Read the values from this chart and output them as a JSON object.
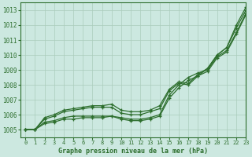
{
  "title": "Graphe pression niveau de la mer (hPa)",
  "background_color": "#cce8e0",
  "grid_color": "#aaccbb",
  "line_color": "#2d6e2d",
  "xlim": [
    -0.5,
    23
  ],
  "ylim": [
    1004.5,
    1013.5
  ],
  "yticks": [
    1005,
    1006,
    1007,
    1008,
    1009,
    1010,
    1011,
    1012,
    1013
  ],
  "xticks": [
    0,
    1,
    2,
    3,
    4,
    5,
    6,
    7,
    8,
    9,
    10,
    11,
    12,
    13,
    14,
    15,
    16,
    17,
    18,
    19,
    20,
    21,
    22,
    23
  ],
  "series": [
    [
      1005.0,
      1005.0,
      1005.7,
      1005.9,
      1006.2,
      1006.3,
      1006.4,
      1006.5,
      1006.5,
      1006.5,
      1006.1,
      1006.0,
      1006.0,
      1006.2,
      1006.4,
      1007.6,
      1008.1,
      1008.0,
      1008.6,
      1009.1,
      1010.0,
      1010.5,
      1012.0,
      1013.2
    ],
    [
      1005.0,
      1005.0,
      1005.8,
      1006.0,
      1006.3,
      1006.4,
      1006.5,
      1006.6,
      1006.6,
      1006.7,
      1006.3,
      1006.2,
      1006.2,
      1006.3,
      1006.6,
      1007.7,
      1008.2,
      1008.1,
      1008.7,
      1009.1,
      1010.0,
      1010.5,
      1011.8,
      1013.0
    ],
    [
      1005.0,
      1005.0,
      1005.5,
      1005.6,
      1005.8,
      1005.9,
      1005.9,
      1005.9,
      1005.9,
      1005.9,
      1005.8,
      1005.7,
      1005.7,
      1005.8,
      1006.0,
      1007.3,
      1008.0,
      1008.5,
      1008.8,
      1009.0,
      1009.9,
      1010.3,
      1011.5,
      1012.8
    ],
    [
      1005.0,
      1005.0,
      1005.4,
      1005.5,
      1005.7,
      1005.7,
      1005.8,
      1005.8,
      1005.8,
      1005.9,
      1005.7,
      1005.6,
      1005.6,
      1005.7,
      1005.9,
      1007.1,
      1007.8,
      1008.3,
      1008.6,
      1008.9,
      1009.8,
      1010.2,
      1011.4,
      1012.7
    ]
  ]
}
